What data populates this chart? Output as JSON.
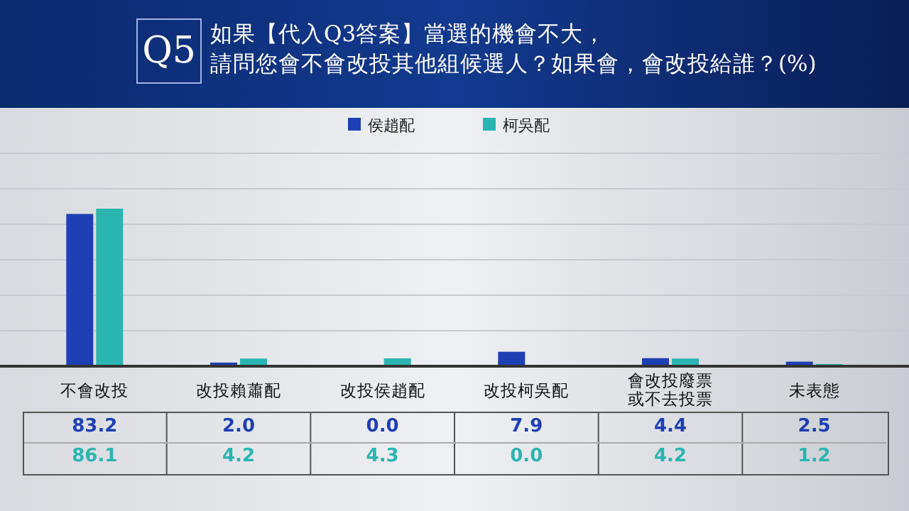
{
  "chart_data": {
    "type": "bar",
    "title": "如果【代入Q3答案】當選的機會不大，",
    "subtitle": "請問您會不會改投其他組候選人？如果會，會改投給誰？(%)",
    "annotations": [
      "Q5"
    ],
    "categories": [
      "不會改投",
      "改投賴蕭配",
      "改投侯趙配",
      "改投柯吳配",
      "會改投廢票或不去投票",
      "未表態"
    ],
    "series": [
      {
        "name": "侯趙配",
        "color": "#1f3fb4",
        "values": [
          83.2,
          2.0,
          0.0,
          7.9,
          4.4,
          2.5
        ],
        "value_labels": [
          "83.2",
          "2.0",
          "0.0",
          "7.9",
          "4.4",
          "2.5"
        ]
      },
      {
        "name": "柯吳配",
        "color": "#2bb5b0",
        "values": [
          86.1,
          4.2,
          4.3,
          0.0,
          4.2,
          1.2
        ],
        "value_labels": [
          "86.1",
          "4.2",
          "4.3",
          "0.0",
          "4.2",
          "1.2"
        ]
      }
    ],
    "legend": "top right",
    "grid": "y"
  }
}
